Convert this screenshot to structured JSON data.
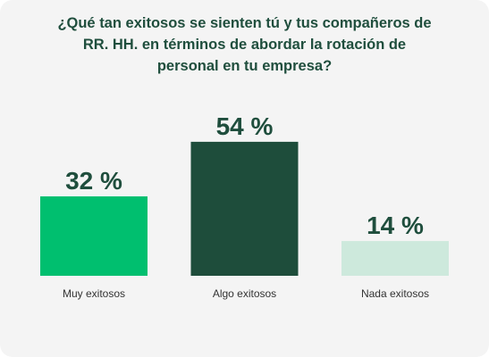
{
  "chart_data": {
    "type": "bar",
    "title_lines": [
      "¿Qué tan exitosos se sienten tú y tus compañeros de",
      "RR. HH. en términos de abordar la rotación de",
      "personal en tu empresa?"
    ],
    "categories": [
      "Muy exitosos",
      "Algo exitosos",
      "Nada exitosos"
    ],
    "values": [
      32,
      54,
      14
    ],
    "value_labels": [
      "32 %",
      "54 %",
      "14 %"
    ],
    "colors": [
      "#00bf6f",
      "#1e4d3b",
      "#cde9dc"
    ],
    "ylim": [
      0,
      100
    ],
    "grid": false,
    "xlabel": "",
    "ylabel": ""
  }
}
